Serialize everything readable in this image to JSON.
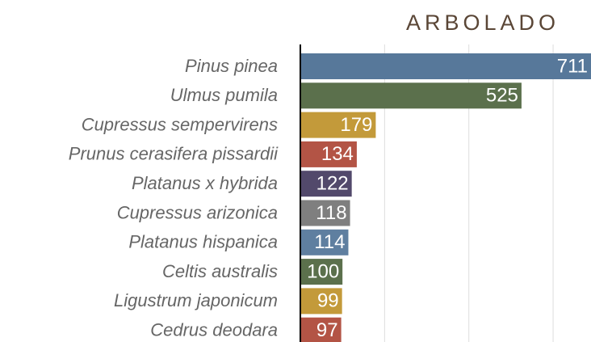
{
  "chart_data": {
    "type": "hbar",
    "title": "ARBOLADO",
    "categories": [
      "Pinus pinea",
      "Ulmus pumila",
      "Cupressus sempervirens",
      "Prunus cerasifera pissardii",
      "Platanus x hybrida",
      "Cupressus arizonica",
      "Platanus hispanica",
      "Celtis australis",
      "Ligustrum japonicum",
      "Cedrus deodara"
    ],
    "values": [
      711,
      525,
      179,
      134,
      122,
      118,
      114,
      100,
      99,
      97
    ],
    "colors": [
      "#57789a",
      "#5b704c",
      "#c39a3a",
      "#b35445",
      "#52496b",
      "#7f7f7f",
      "#5f7fa0",
      "#5b704c",
      "#c39a3a",
      "#b35445"
    ],
    "xlim": [
      0,
      690
    ],
    "xticks": [
      0,
      200,
      400,
      600
    ],
    "grid": true
  }
}
